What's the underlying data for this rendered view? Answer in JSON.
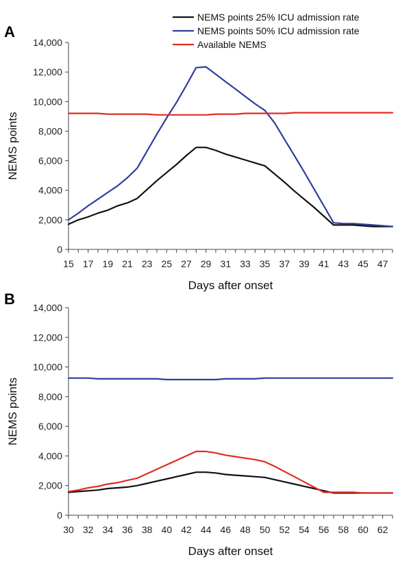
{
  "chart_data": [
    {
      "panel_label": "A",
      "type": "line",
      "xlabel": "Days after onset",
      "ylabel": "NEMS points",
      "xlim": [
        15,
        48
      ],
      "ylim": [
        0,
        14000
      ],
      "x_ticks": [
        "15",
        "17",
        "19",
        "21",
        "23",
        "25",
        "27",
        "29",
        "31",
        "33",
        "35",
        "37",
        "39",
        "41",
        "43",
        "45",
        "47"
      ],
      "y_ticks": [
        "0",
        "2,000",
        "4,000",
        "6,000",
        "8,000",
        "10,000",
        "12,000",
        "14,000"
      ],
      "legend_position": "top-right",
      "grid": false,
      "x": [
        15,
        16,
        17,
        18,
        19,
        20,
        21,
        22,
        23,
        24,
        25,
        26,
        27,
        28,
        29,
        30,
        31,
        32,
        33,
        34,
        35,
        36,
        37,
        38,
        39,
        40,
        41,
        42,
        43,
        44,
        45,
        46,
        47,
        48
      ],
      "series": [
        {
          "name": "NEMS points 25% ICU admission rate",
          "color": "#111111",
          "values": [
            1700,
            2000,
            2200,
            2450,
            2650,
            2950,
            3150,
            3450,
            4050,
            4650,
            5200,
            5750,
            6350,
            6900,
            6900,
            6700,
            6450,
            6250,
            6050,
            5850,
            5650,
            5100,
            4550,
            3950,
            3400,
            2850,
            2250,
            1650,
            1650,
            1650,
            1600,
            1550,
            1550,
            1550
          ]
        },
        {
          "name": "NEMS points 50% ICU admission rate",
          "color": "#2e3d9c",
          "values": [
            2000,
            2450,
            2950,
            3400,
            3850,
            4300,
            4850,
            5500,
            6650,
            7800,
            8900,
            9950,
            11100,
            12300,
            12350,
            11850,
            11350,
            10850,
            10350,
            9850,
            9400,
            8550,
            7450,
            6350,
            5250,
            4100,
            2950,
            1800,
            1750,
            1750,
            1700,
            1650,
            1600,
            1550
          ]
        },
        {
          "name": "Available NEMS",
          "color": "#e02b20",
          "values": [
            9200,
            9200,
            9200,
            9200,
            9150,
            9150,
            9150,
            9150,
            9150,
            9100,
            9100,
            9100,
            9100,
            9100,
            9100,
            9150,
            9150,
            9150,
            9200,
            9200,
            9200,
            9200,
            9200,
            9250,
            9250,
            9250,
            9250,
            9250,
            9250,
            9250,
            9250,
            9250,
            9250,
            9250
          ]
        }
      ]
    },
    {
      "panel_label": "B",
      "type": "line",
      "xlabel": "Days after onset",
      "ylabel": "NEMS points",
      "xlim": [
        30,
        63
      ],
      "ylim": [
        0,
        14000
      ],
      "x_ticks": [
        "30",
        "32",
        "34",
        "36",
        "38",
        "40",
        "42",
        "44",
        "46",
        "48",
        "50",
        "52",
        "54",
        "56",
        "58",
        "60",
        "62"
      ],
      "y_ticks": [
        "0",
        "2,000",
        "4,000",
        "6,000",
        "8,000",
        "10,000",
        "12,000",
        "14,000"
      ],
      "grid": false,
      "x": [
        30,
        31,
        32,
        33,
        34,
        35,
        36,
        37,
        38,
        39,
        40,
        41,
        42,
        43,
        44,
        45,
        46,
        47,
        48,
        49,
        50,
        51,
        52,
        53,
        54,
        55,
        56,
        57,
        58,
        59,
        60,
        61,
        62,
        63
      ],
      "series": [
        {
          "color": "#111111",
          "values": [
            1550,
            1600,
            1650,
            1700,
            1800,
            1850,
            1900,
            2000,
            2150,
            2300,
            2450,
            2600,
            2750,
            2900,
            2900,
            2850,
            2750,
            2700,
            2650,
            2600,
            2550,
            2400,
            2250,
            2100,
            1950,
            1800,
            1650,
            1500,
            1500,
            1500,
            1500,
            1500,
            1500,
            1500
          ]
        },
        {
          "color": "#e02b20",
          "values": [
            1600,
            1700,
            1850,
            1950,
            2100,
            2200,
            2350,
            2500,
            2800,
            3100,
            3400,
            3700,
            4000,
            4300,
            4300,
            4200,
            4050,
            3950,
            3850,
            3750,
            3600,
            3300,
            2950,
            2600,
            2250,
            1900,
            1550,
            1550,
            1550,
            1550,
            1500,
            1500,
            1500,
            1500
          ]
        },
        {
          "color": "#2e3d9c",
          "values": [
            9250,
            9250,
            9250,
            9200,
            9200,
            9200,
            9200,
            9200,
            9200,
            9200,
            9150,
            9150,
            9150,
            9150,
            9150,
            9150,
            9200,
            9200,
            9200,
            9200,
            9250,
            9250,
            9250,
            9250,
            9250,
            9250,
            9250,
            9250,
            9250,
            9250,
            9250,
            9250,
            9250,
            9250
          ]
        }
      ]
    }
  ]
}
